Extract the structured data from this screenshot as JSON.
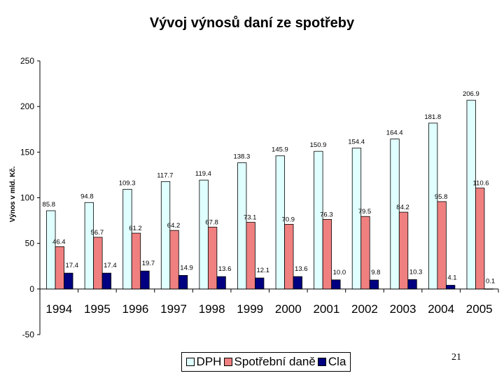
{
  "chart_data": {
    "type": "bar",
    "title": "Vývoj výnosů daní ze spotřeby",
    "xlabel": "",
    "ylabel": "Výnos v mld. Kč.",
    "ylim": [
      -50,
      250
    ],
    "yticks": [
      -50,
      0,
      50,
      100,
      150,
      200,
      250
    ],
    "categories": [
      "1994",
      "1995",
      "1996",
      "1997",
      "1998",
      "1999",
      "2000",
      "2001",
      "2002",
      "2003",
      "2004",
      "2005"
    ],
    "series": [
      {
        "name": "DPH",
        "color": "#e0ffff",
        "values": [
          85.8,
          94.8,
          109.3,
          117.7,
          119.4,
          138.3,
          145.9,
          150.9,
          154.4,
          164.4,
          181.8,
          206.9
        ],
        "labels": [
          "85.8",
          "94.8",
          "109.3",
          "117.7",
          "119.4",
          "138.3",
          "145.9",
          "150.9",
          "154.4",
          "164.4",
          "181.8",
          "206.9"
        ]
      },
      {
        "name": "Spotřební daně",
        "color": "#f08080",
        "values": [
          46.4,
          56.7,
          61.2,
          64.2,
          67.8,
          73.1,
          70.9,
          76.3,
          79.5,
          84.2,
          95.8,
          110.6
        ],
        "labels": [
          "46.4",
          "56.7",
          "61.2",
          "64.2",
          "67.8",
          "73.1",
          "70.9",
          "76.3",
          "79.5",
          "84.2",
          "95.8",
          "110.6"
        ]
      },
      {
        "name": "Cla",
        "color": "#000080",
        "values": [
          17.4,
          17.4,
          19.7,
          14.9,
          13.6,
          12.1,
          13.6,
          10.0,
          9.8,
          10.3,
          4.1,
          0.1
        ],
        "labels": [
          "17.4",
          "17.4",
          "19.7",
          "14.9",
          "13.6",
          "12.1",
          "13.6",
          "10.0",
          "9.8",
          "10.3",
          "4.1",
          "0.1"
        ]
      }
    ],
    "legend": "bottom",
    "grid": false
  },
  "page_number": "21"
}
